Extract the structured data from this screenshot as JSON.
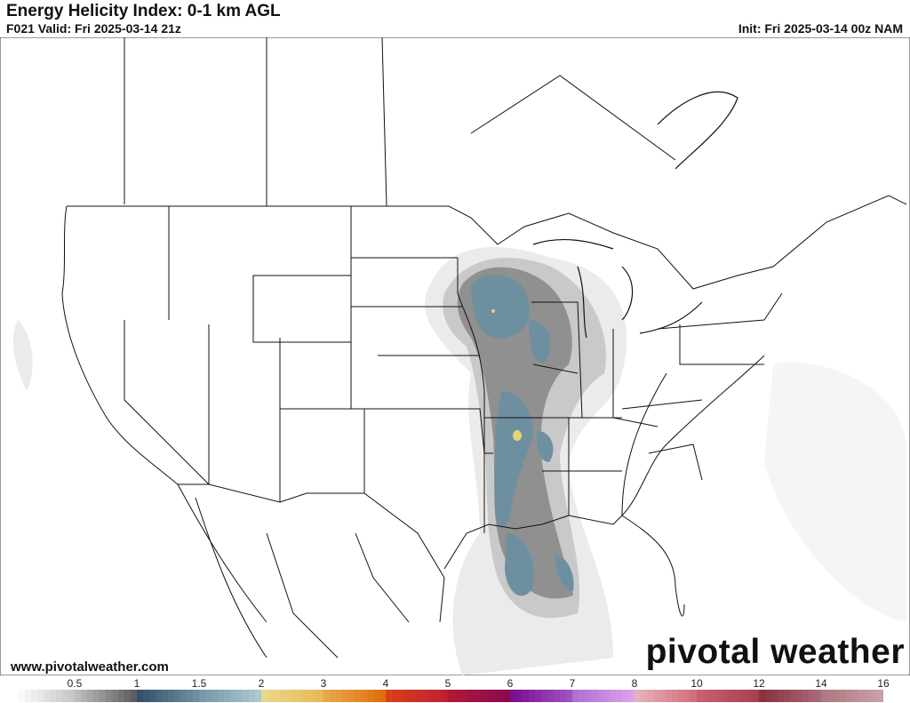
{
  "header": {
    "title": "Energy Helicity Index: 0-1 km AGL",
    "valid": "F021 Valid: Fri 2025-03-14 21z",
    "init": "Init: Fri 2025-03-14 00z NAM"
  },
  "footer": {
    "website": "www.pivotalweather.com",
    "brand": "pivotal weather"
  },
  "colorbar": {
    "tick_labels": [
      "0.5",
      "1",
      "1.5",
      "2",
      "3",
      "4",
      "5",
      "6",
      "7",
      "8",
      "10",
      "12",
      "14",
      "16"
    ],
    "interval_colors": [
      [
        "#ffffff",
        "#c8c8c8"
      ],
      [
        "#bdbdbd",
        "#5e5e5e"
      ],
      [
        "#34506a",
        "#6e8fa0"
      ],
      [
        "#7898a8",
        "#a9c8d0"
      ],
      [
        "#ead98a",
        "#e8b85a"
      ],
      [
        "#e8a84a",
        "#e06f10"
      ],
      [
        "#d8401a",
        "#c02030"
      ],
      [
        "#b01838",
        "#8a0a50"
      ],
      [
        "#7a1090",
        "#a050c0"
      ],
      [
        "#b070d0",
        "#dca0ec"
      ],
      [
        "#e8b0b8",
        "#d07080"
      ],
      [
        "#c86070",
        "#a84050"
      ],
      [
        "#8a3040",
        "#a86878"
      ],
      [
        "#b07880",
        "#c8a0a8"
      ]
    ]
  }
}
